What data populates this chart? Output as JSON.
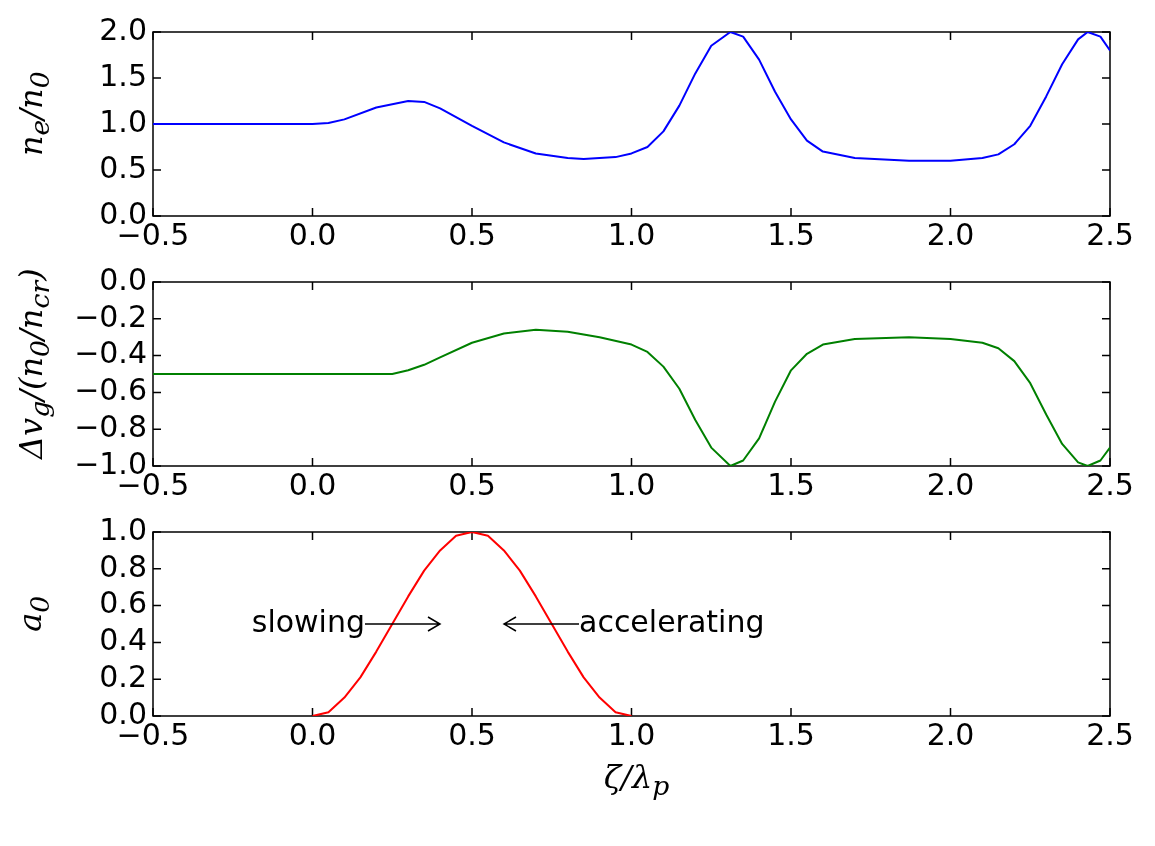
{
  "chart_data": [
    {
      "type": "line",
      "ylabel": "n$_{e}$/n$_{0}$",
      "xlim": [
        -0.5,
        2.5
      ],
      "ylim": [
        0,
        2
      ],
      "xticks": [
        {
          "value": -0.5,
          "label": "−0.5"
        },
        {
          "value": 0,
          "label": "0.0"
        },
        {
          "value": 0.5,
          "label": "0.5"
        },
        {
          "value": 1,
          "label": "1.0"
        },
        {
          "value": 1.5,
          "label": "1.5"
        },
        {
          "value": 2,
          "label": "2.0"
        },
        {
          "value": 2.5,
          "label": "2.5"
        }
      ],
      "yticks": [
        {
          "value": 0,
          "label": "0.0"
        },
        {
          "value": 0.5,
          "label": "0.5"
        },
        {
          "value": 1,
          "label": "1.0"
        },
        {
          "value": 1.5,
          "label": "1.5"
        },
        {
          "value": 2,
          "label": "2.0"
        }
      ],
      "grid": false,
      "legend": false,
      "series": [
        {
          "color": "#0000ff",
          "x": [
            -0.5,
            0,
            0.05,
            0.1,
            0.2,
            0.3,
            0.35,
            0.4,
            0.5,
            0.6,
            0.7,
            0.8,
            0.85,
            0.95,
            1,
            1.05,
            1.1,
            1.15,
            1.2,
            1.25,
            1.31,
            1.35,
            1.4,
            1.45,
            1.5,
            1.55,
            1.6,
            1.7,
            1.87,
            2,
            2.1,
            2.15,
            2.2,
            2.25,
            2.3,
            2.35,
            2.4,
            2.43,
            2.47,
            2.5
          ],
          "values": [
            1,
            1,
            1.01,
            1.05,
            1.18,
            1.25,
            1.24,
            1.17,
            0.98,
            0.8,
            0.68,
            0.63,
            0.62,
            0.64,
            0.68,
            0.75,
            0.92,
            1.2,
            1.55,
            1.85,
            2,
            1.95,
            1.7,
            1.35,
            1.05,
            0.82,
            0.7,
            0.63,
            0.6,
            0.6,
            0.63,
            0.67,
            0.78,
            0.98,
            1.3,
            1.65,
            1.92,
            2,
            1.95,
            1.8
          ]
        }
      ]
    },
    {
      "type": "line",
      "ylabel": "Δv$_{g}$/(n$_{0}$/n$_{cr}$)",
      "xlim": [
        -0.5,
        2.5
      ],
      "ylim": [
        -1,
        0
      ],
      "xticks": [
        {
          "value": -0.5,
          "label": "−0.5"
        },
        {
          "value": 0,
          "label": "0.0"
        },
        {
          "value": 0.5,
          "label": "0.5"
        },
        {
          "value": 1,
          "label": "1.0"
        },
        {
          "value": 1.5,
          "label": "1.5"
        },
        {
          "value": 2,
          "label": "2.0"
        },
        {
          "value": 2.5,
          "label": "2.5"
        }
      ],
      "yticks": [
        {
          "value": -1,
          "label": "−1.0"
        },
        {
          "value": -0.8,
          "label": "−0.8"
        },
        {
          "value": -0.6,
          "label": "−0.6"
        },
        {
          "value": -0.4,
          "label": "−0.4"
        },
        {
          "value": -0.2,
          "label": "−0.2"
        },
        {
          "value": 0,
          "label": "0.0"
        }
      ],
      "grid": false,
      "legend": false,
      "series": [
        {
          "color": "#008000",
          "x": [
            -0.5,
            0.2,
            0.25,
            0.3,
            0.35,
            0.4,
            0.5,
            0.6,
            0.7,
            0.8,
            0.9,
            1,
            1.05,
            1.1,
            1.15,
            1.2,
            1.25,
            1.31,
            1.35,
            1.4,
            1.45,
            1.5,
            1.55,
            1.6,
            1.7,
            1.87,
            2,
            2.1,
            2.15,
            2.2,
            2.25,
            2.3,
            2.35,
            2.4,
            2.43,
            2.47,
            2.5
          ],
          "values": [
            -0.5,
            -0.5,
            -0.5,
            -0.48,
            -0.45,
            -0.41,
            -0.33,
            -0.28,
            -0.26,
            -0.27,
            -0.3,
            -0.34,
            -0.38,
            -0.46,
            -0.58,
            -0.75,
            -0.9,
            -1,
            -0.97,
            -0.85,
            -0.65,
            -0.48,
            -0.39,
            -0.34,
            -0.31,
            -0.3,
            -0.31,
            -0.33,
            -0.36,
            -0.43,
            -0.55,
            -0.72,
            -0.88,
            -0.98,
            -1,
            -0.97,
            -0.9
          ]
        }
      ]
    },
    {
      "type": "line",
      "ylabel": "a$_{0}$",
      "xlabel": "ζ/λ$_{p}$",
      "xlim": [
        -0.5,
        2.5
      ],
      "ylim": [
        0,
        1
      ],
      "xticks": [
        {
          "value": -0.5,
          "label": "−0.5"
        },
        {
          "value": 0,
          "label": "0.0"
        },
        {
          "value": 0.5,
          "label": "0.5"
        },
        {
          "value": 1,
          "label": "1.0"
        },
        {
          "value": 1.5,
          "label": "1.5"
        },
        {
          "value": 2,
          "label": "2.0"
        },
        {
          "value": 2.5,
          "label": "2.5"
        }
      ],
      "yticks": [
        {
          "value": 0,
          "label": "0.0"
        },
        {
          "value": 0.2,
          "label": "0.2"
        },
        {
          "value": 0.4,
          "label": "0.4"
        },
        {
          "value": 0.6,
          "label": "0.6"
        },
        {
          "value": 0.8,
          "label": "0.8"
        },
        {
          "value": 1,
          "label": "1.0"
        }
      ],
      "grid": false,
      "legend": false,
      "annotations": [
        "slowing",
        "accelerating"
      ],
      "series": [
        {
          "color": "#ff0000",
          "x": [
            0,
            0.05,
            0.1,
            0.15,
            0.2,
            0.25,
            0.3,
            0.35,
            0.4,
            0.45,
            0.5,
            0.55,
            0.6,
            0.65,
            0.7,
            0.75,
            0.8,
            0.85,
            0.9,
            0.95,
            1
          ],
          "values": [
            0,
            0.02,
            0.1,
            0.21,
            0.35,
            0.5,
            0.65,
            0.79,
            0.9,
            0.98,
            1,
            0.98,
            0.9,
            0.79,
            0.65,
            0.5,
            0.35,
            0.21,
            0.1,
            0.02,
            0
          ]
        }
      ]
    }
  ]
}
